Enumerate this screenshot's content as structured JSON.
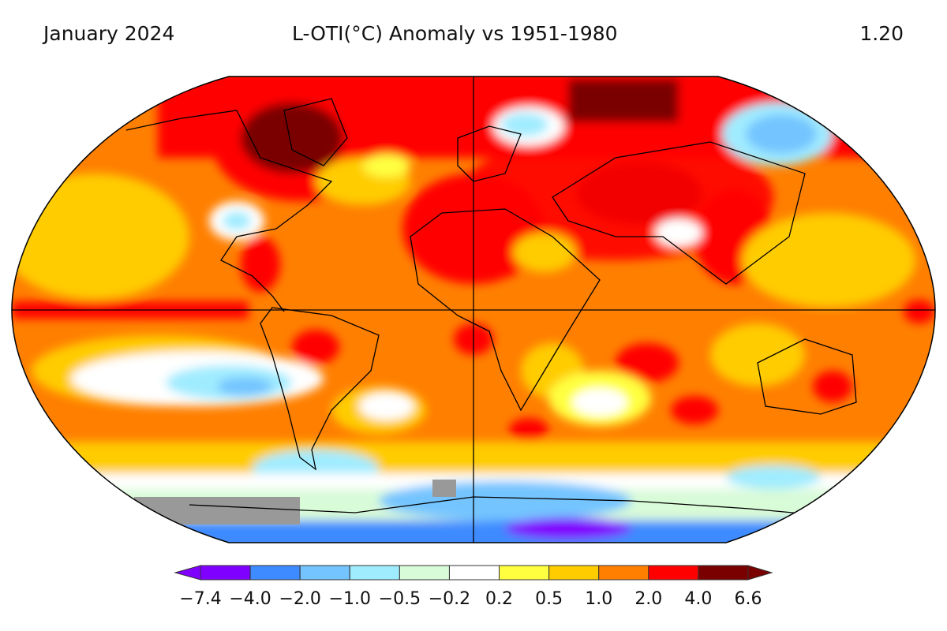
{
  "header": {
    "date": "January 2024",
    "title": "L-OTI(°C) Anomaly vs 1951-1980",
    "global_mean": "1.20"
  },
  "colorbar": {
    "labels": [
      "−7.4",
      "−4.0",
      "−2.0",
      "−1.0",
      "−0.5",
      "−0.2",
      "0.2",
      "0.5",
      "1.0",
      "2.0",
      "4.0",
      "6.6"
    ],
    "colors": [
      "#8000ff",
      "#3d8bff",
      "#73c4ff",
      "#a0ecff",
      "#d8fbd8",
      "#ffffff",
      "#ffff40",
      "#ffcc00",
      "#ff7f00",
      "#ff0000",
      "#7a0000"
    ],
    "missing_color": "#999999"
  },
  "map": {
    "projection": "Robinson",
    "grid_lines": [
      "equator",
      "prime meridian"
    ]
  }
}
